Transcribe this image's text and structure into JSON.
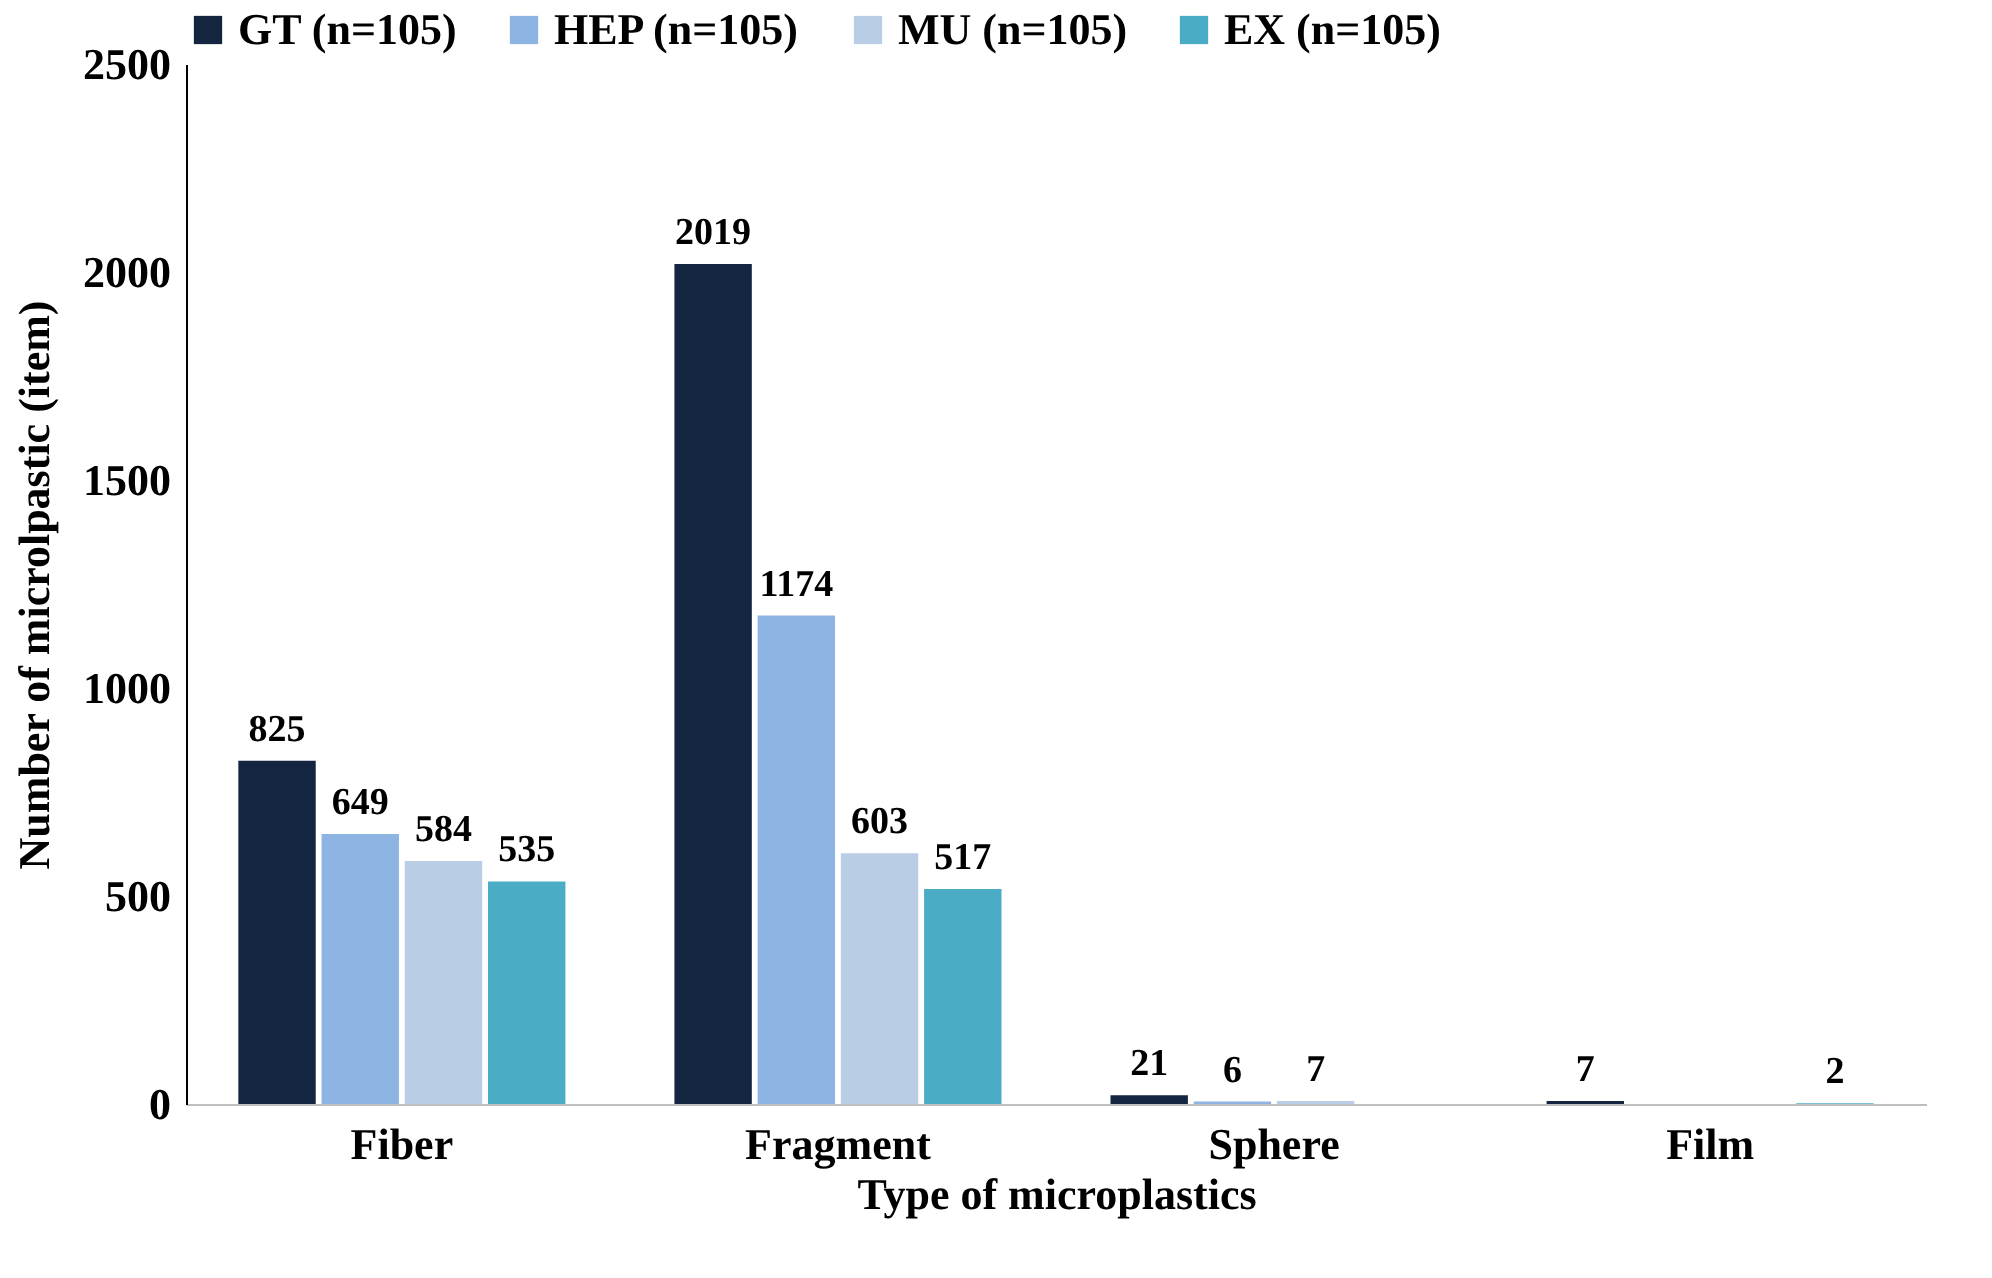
{
  "chart_data": {
    "type": "bar",
    "xlabel": "Type of microplastics",
    "ylabel": "Number of microlpastic (item)",
    "categories": [
      "Fiber",
      "Fragment",
      "Sphere",
      "Film"
    ],
    "series": [
      {
        "name": "GT (n=105)",
        "color": "#14263f",
        "values": [
          825,
          2019,
          21,
          7
        ],
        "value_labels": [
          "825",
          "2019",
          "21",
          "7"
        ]
      },
      {
        "name": "HEP (n=105)",
        "color": "#8eb4e3",
        "values": [
          649,
          1174,
          6,
          0
        ],
        "value_labels": [
          "649",
          "1174",
          "6",
          null
        ]
      },
      {
        "name": "MU (n=105)",
        "color": "#b9cde5",
        "values": [
          584,
          603,
          7,
          0
        ],
        "value_labels": [
          "584",
          "603",
          "7",
          null
        ]
      },
      {
        "name": "EX (n=105)",
        "color": "#4bacc6",
        "values": [
          535,
          517,
          0,
          2
        ],
        "value_labels": [
          "535",
          "517",
          null,
          "2"
        ]
      }
    ],
    "ylim": [
      0,
      2500
    ],
    "yticks": [
      0,
      500,
      1000,
      1500,
      2000,
      2500
    ],
    "grid": false,
    "legend": "top"
  }
}
